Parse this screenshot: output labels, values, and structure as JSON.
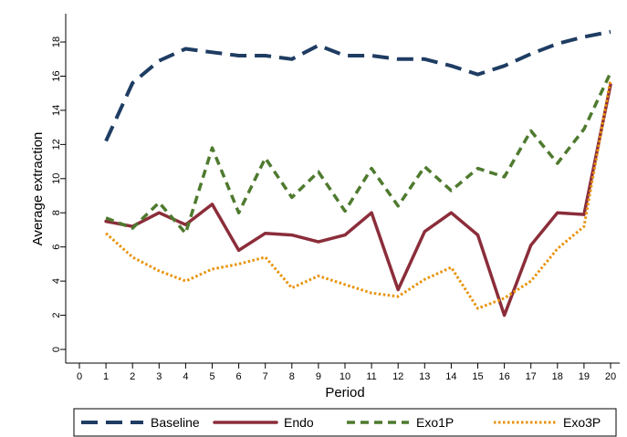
{
  "chart_data": {
    "type": "line",
    "xlabel": "Period",
    "ylabel": "Average extraction",
    "xlim": [
      0,
      20
    ],
    "ylim": [
      0,
      19
    ],
    "x_ticks": [
      0,
      1,
      2,
      3,
      4,
      5,
      6,
      7,
      8,
      9,
      10,
      11,
      12,
      13,
      14,
      15,
      16,
      17,
      18,
      19,
      20
    ],
    "y_ticks": [
      0,
      2,
      4,
      6,
      8,
      10,
      12,
      14,
      16,
      18
    ],
    "grid": false,
    "legend_position": "bottom",
    "x": [
      1,
      2,
      3,
      4,
      5,
      6,
      7,
      8,
      9,
      10,
      11,
      12,
      13,
      14,
      15,
      16,
      17,
      18,
      19,
      20
    ],
    "series": [
      {
        "name": "Baseline",
        "color": "#1f3d63",
        "style": "long-dash",
        "values": [
          12.2,
          15.6,
          16.9,
          17.6,
          17.4,
          17.2,
          17.2,
          17.0,
          17.8,
          17.2,
          17.2,
          17.0,
          17.0,
          16.6,
          16.1,
          16.6,
          17.3,
          17.9,
          18.3,
          18.6
        ]
      },
      {
        "name": "Endo",
        "color": "#8b2d3a",
        "style": "solid",
        "values": [
          7.5,
          7.2,
          8.0,
          7.3,
          8.5,
          5.8,
          6.8,
          6.7,
          6.3,
          6.7,
          8.0,
          3.5,
          6.9,
          8.0,
          6.7,
          2.0,
          6.1,
          8.0,
          7.9,
          15.5
        ]
      },
      {
        "name": "Exo1P",
        "color": "#4e7a2e",
        "style": "dash",
        "values": [
          7.7,
          7.1,
          8.6,
          6.8,
          11.8,
          8.0,
          11.2,
          8.9,
          10.4,
          8.1,
          10.6,
          8.4,
          10.7,
          9.3,
          10.6,
          10.1,
          12.8,
          10.9,
          12.9,
          16.2
        ]
      },
      {
        "name": "Exo3P",
        "color": "#e8930c",
        "style": "dotted",
        "values": [
          6.8,
          5.4,
          4.6,
          4.0,
          4.7,
          5.0,
          5.4,
          3.6,
          4.3,
          3.8,
          3.3,
          3.1,
          4.1,
          4.8,
          2.4,
          3.0,
          4.0,
          5.9,
          7.2,
          15.8
        ]
      }
    ]
  }
}
